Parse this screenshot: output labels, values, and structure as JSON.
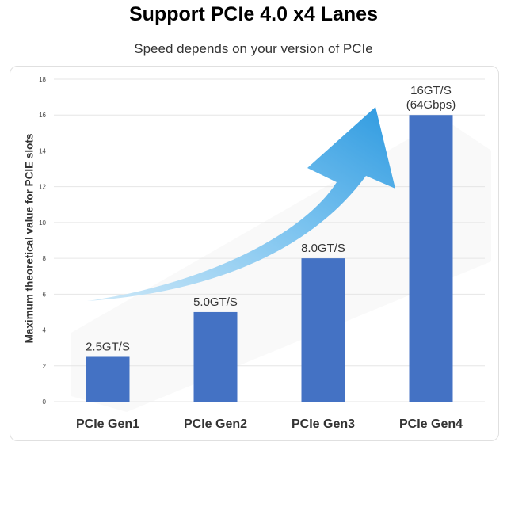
{
  "header": {
    "title": "Support PCIe 4.0 x4 Lanes",
    "subtitle": "Speed depends on your version of PCIe"
  },
  "chart_data": {
    "type": "bar",
    "title": "Support PCIe 4.0 x4 Lanes",
    "subtitle": "Speed depends on your version of PCIe",
    "categories": [
      "PCIe Gen1",
      "PCIe Gen2",
      "PCIe Gen3",
      "PCIe Gen4"
    ],
    "values": [
      2.5,
      5,
      8,
      16
    ],
    "data_labels": [
      [
        "2.5GT/S"
      ],
      [
        "5.0GT/S"
      ],
      [
        "8.0GT/S"
      ],
      [
        "16GT/S",
        "(64Gbps)"
      ]
    ],
    "xlabel": "",
    "ylabel": "Maximum theoretical value for PCIE slots",
    "ylim": [
      0,
      18
    ],
    "yticks": [
      0,
      2,
      4,
      6,
      8,
      10,
      12,
      14,
      16,
      18
    ],
    "grid": true,
    "legend": "none",
    "colors": {
      "bar": "#4472C4",
      "arrow_light": "#CFE9F8",
      "arrow_dark": "#2E9AE0",
      "grid": "#E6E6E6"
    },
    "decoration": "upward-trend-arrow"
  }
}
